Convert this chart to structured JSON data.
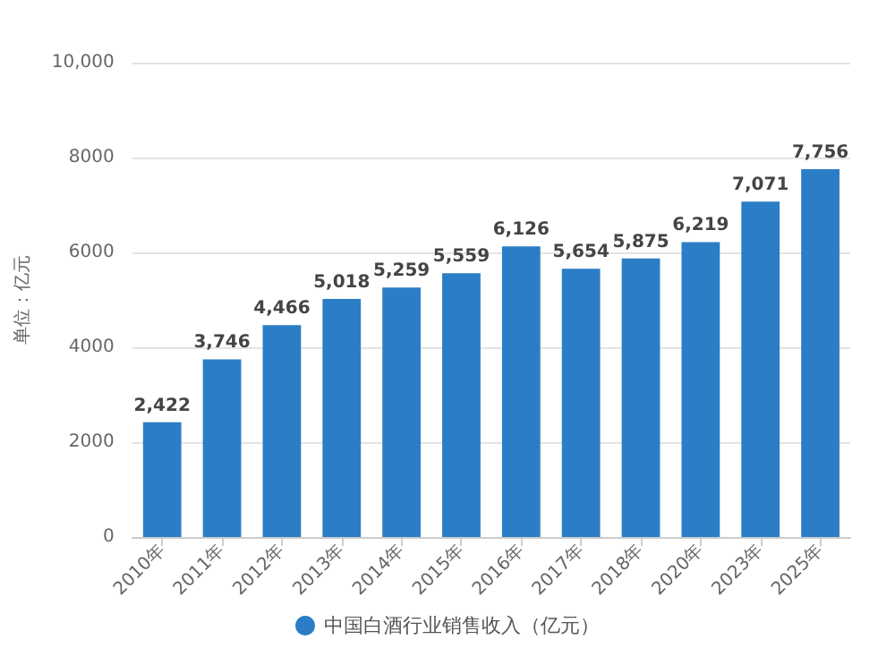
{
  "chart_data": {
    "type": "bar",
    "ylabel": "单位：亿元",
    "categories": [
      "2010年",
      "2011年",
      "2012年",
      "2013年",
      "2014年",
      "2015年",
      "2016年",
      "2017年",
      "2018年",
      "2020年",
      "2023年",
      "2025年"
    ],
    "series": [
      {
        "name": "中国白酒行业销售收入（亿元）",
        "color": "#2b7ec6",
        "values": [
          2422,
          3746,
          4466,
          5018,
          5259,
          5559,
          6126,
          5654,
          5875,
          6219,
          7071,
          7756
        ],
        "value_labels": [
          "2,422",
          "3,746",
          "4,466",
          "5,018",
          "5,259",
          "5,559",
          "6,126",
          "5,654",
          "5,875",
          "6,219",
          "7,071",
          "7,756"
        ]
      }
    ],
    "ylim": [
      0,
      10000
    ],
    "yticks": [
      0,
      2000,
      4000,
      6000,
      8000,
      {
        "value": 10000,
        "label": "10,000"
      }
    ],
    "grid": "y",
    "legend": "bottom"
  }
}
